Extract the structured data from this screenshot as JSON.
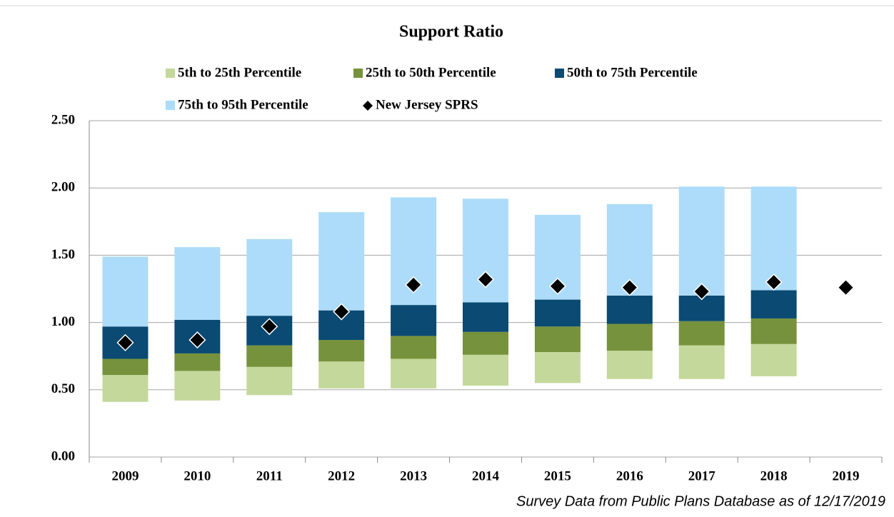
{
  "chart_data": {
    "type": "bar",
    "title": "Support Ratio",
    "footnote": "Survey Data from Public Plans Database as of 12/17/2019",
    "categories": [
      "2009",
      "2010",
      "2011",
      "2012",
      "2013",
      "2014",
      "2015",
      "2016",
      "2017",
      "2018",
      "2019"
    ],
    "base": [
      0.41,
      0.42,
      0.46,
      0.51,
      0.51,
      0.53,
      0.55,
      0.58,
      0.58,
      0.6,
      null
    ],
    "series": [
      {
        "name": "5th to 25th Percentile",
        "color": "#c4d89b",
        "mark": "bar",
        "values": [
          0.2,
          0.22,
          0.21,
          0.2,
          0.22,
          0.23,
          0.23,
          0.21,
          0.25,
          0.24,
          null
        ]
      },
      {
        "name": "25th to 50th Percentile",
        "color": "#76923c",
        "mark": "bar",
        "values": [
          0.12,
          0.13,
          0.16,
          0.16,
          0.17,
          0.17,
          0.19,
          0.2,
          0.18,
          0.19,
          null
        ]
      },
      {
        "name": "50th to 75th Percentile",
        "color": "#0a4a73",
        "mark": "bar",
        "values": [
          0.24,
          0.25,
          0.22,
          0.22,
          0.23,
          0.22,
          0.2,
          0.21,
          0.19,
          0.21,
          null
        ]
      },
      {
        "name": "75th to 95th Percentile",
        "color": "#acdcf9",
        "mark": "bar",
        "values": [
          0.52,
          0.54,
          0.57,
          0.73,
          0.8,
          0.77,
          0.63,
          0.68,
          0.81,
          0.77,
          null
        ]
      },
      {
        "name": "New Jersey SPRS",
        "color": "#000000",
        "mark": "diamond",
        "values": [
          0.85,
          0.87,
          0.97,
          1.08,
          1.28,
          1.32,
          1.27,
          1.26,
          1.23,
          1.3,
          1.26
        ]
      }
    ],
    "ylim": [
      0,
      2.5
    ],
    "yticks": [
      {
        "value": 0,
        "label": "0.00"
      },
      {
        "value": 0.5,
        "label": "0.50"
      },
      {
        "value": 1,
        "label": "1.00"
      },
      {
        "value": 1.5,
        "label": "1.50"
      },
      {
        "value": 2,
        "label": "2.00"
      },
      {
        "value": 2.5,
        "label": "2.50"
      }
    ],
    "grid": true
  }
}
